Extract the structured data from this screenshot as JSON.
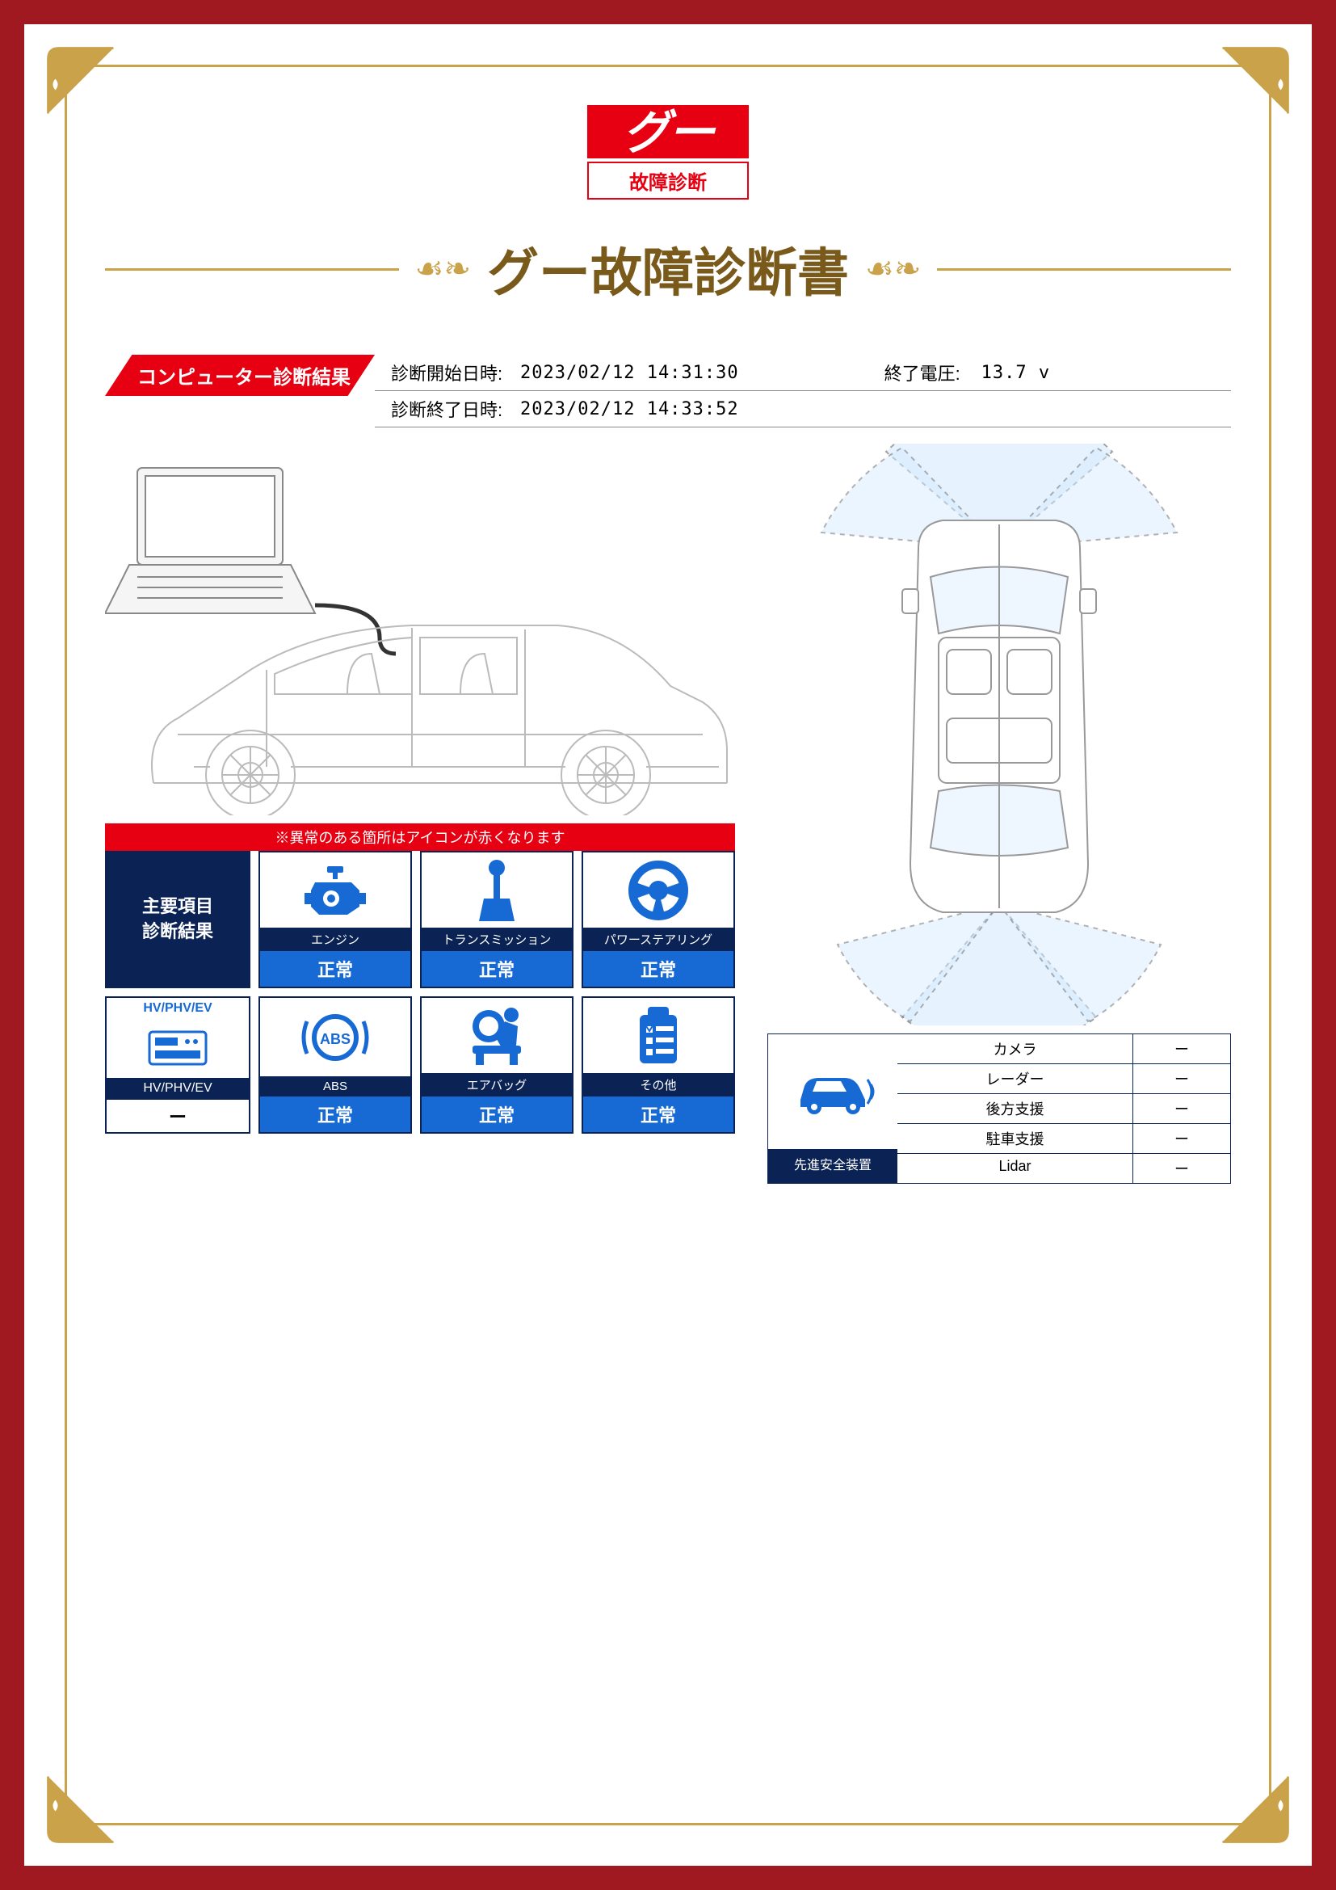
{
  "colors": {
    "brand_red": "#e60012",
    "dark_navy": "#0a2354",
    "bright_blue": "#1769d4",
    "gold": "#c9a24a",
    "title_brown": "#7a5a1a",
    "frame_red": "#a01820"
  },
  "logo": {
    "main": "グー",
    "sub": "故障診断"
  },
  "title": "グー故障診断書",
  "section_tab": "コンピューター診断結果",
  "meta": {
    "start_label": "診断開始日時:",
    "start_value": "2023/02/12 14:31:30",
    "end_label": "診断終了日時:",
    "end_value": "2023/02/12 14:33:52",
    "voltage_label": "終了電圧:",
    "voltage_value": "13.7 v"
  },
  "warning_strip": "※異常のある箇所はアイコンが赤くなります",
  "lead_box": {
    "line1": "主要項目",
    "line2": "診断結果"
  },
  "hv_box": {
    "top": "HV/PHV/EV",
    "label": "HV/PHV/EV",
    "status": "ー"
  },
  "cards": [
    {
      "label": "エンジン",
      "status": "正常",
      "icon": "engine"
    },
    {
      "label": "トランスミッション",
      "status": "正常",
      "icon": "transmission"
    },
    {
      "label": "パワーステアリング",
      "status": "正常",
      "icon": "steering"
    },
    {
      "label": "ABS",
      "status": "正常",
      "icon": "abs"
    },
    {
      "label": "エアバッグ",
      "status": "正常",
      "icon": "airbag"
    },
    {
      "label": "その他",
      "status": "正常",
      "icon": "other"
    }
  ],
  "safety": {
    "lead_label": "先進安全装置",
    "rows": [
      {
        "name": "カメラ",
        "value": "ー"
      },
      {
        "name": "レーダー",
        "value": "ー"
      },
      {
        "name": "後方支援",
        "value": "ー"
      },
      {
        "name": "駐車支援",
        "value": "ー"
      },
      {
        "name": "Lidar",
        "value": "ー"
      }
    ]
  }
}
